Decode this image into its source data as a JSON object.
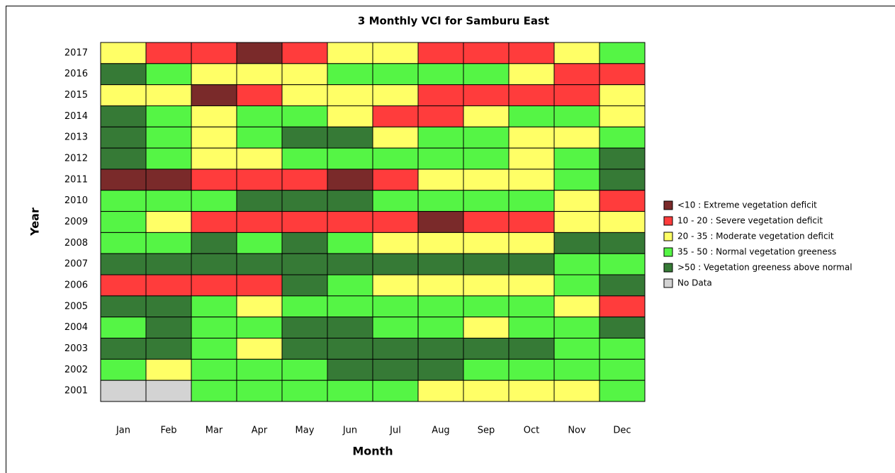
{
  "chart_data": {
    "type": "heatmap",
    "title": "3 Monthly VCI for Samburu East",
    "x_label": "Month",
    "y_label": "Year",
    "categories": [
      "Jan",
      "Feb",
      "Mar",
      "Apr",
      "May",
      "Jun",
      "Jul",
      "Aug",
      "Sep",
      "Oct",
      "Nov",
      "Dec"
    ],
    "years": [
      "2017",
      "2016",
      "2015",
      "2014",
      "2013",
      "2012",
      "2011",
      "2010",
      "2009",
      "2008",
      "2007",
      "2006",
      "2005",
      "2004",
      "2003",
      "2002",
      "2001"
    ],
    "legend": [
      {
        "name": "<10 : Extreme vegetation deficit",
        "color": "#7a2a2a"
      },
      {
        "name": "10 - 20 : Severe vegetation deficit",
        "color": "#ff3c3c"
      },
      {
        "name": "20 - 35 : Moderate vegetation deficit",
        "color": "#ffff66"
      },
      {
        "name": "35 - 50 : Normal vegetation greeness",
        "color": "#55f545"
      },
      {
        "name": ">50 : Vegetation greeness above normal",
        "color": "#367a36"
      },
      {
        "name": "No Data",
        "color": "#d3d3d3"
      }
    ],
    "values": [
      [
        2,
        1,
        1,
        0,
        1,
        2,
        2,
        1,
        1,
        1,
        2,
        3
      ],
      [
        4,
        3,
        2,
        2,
        2,
        3,
        3,
        3,
        3,
        2,
        1,
        1
      ],
      [
        2,
        2,
        0,
        1,
        2,
        2,
        2,
        1,
        1,
        1,
        1,
        2
      ],
      [
        4,
        3,
        2,
        3,
        3,
        2,
        1,
        1,
        2,
        3,
        3,
        2
      ],
      [
        4,
        3,
        2,
        3,
        4,
        4,
        2,
        3,
        3,
        2,
        2,
        3
      ],
      [
        4,
        3,
        2,
        2,
        3,
        3,
        3,
        3,
        3,
        2,
        3,
        4
      ],
      [
        0,
        0,
        1,
        1,
        1,
        0,
        1,
        2,
        2,
        2,
        3,
        4
      ],
      [
        3,
        3,
        3,
        4,
        4,
        4,
        3,
        3,
        3,
        3,
        2,
        1
      ],
      [
        3,
        2,
        1,
        1,
        1,
        1,
        1,
        0,
        1,
        1,
        2,
        2
      ],
      [
        3,
        3,
        4,
        3,
        4,
        3,
        2,
        2,
        2,
        2,
        4,
        4
      ],
      [
        4,
        4,
        4,
        4,
        4,
        4,
        4,
        4,
        4,
        4,
        3,
        3
      ],
      [
        1,
        1,
        1,
        1,
        4,
        3,
        2,
        2,
        2,
        2,
        3,
        4
      ],
      [
        4,
        4,
        3,
        2,
        3,
        3,
        3,
        3,
        3,
        3,
        2,
        1
      ],
      [
        3,
        4,
        3,
        3,
        4,
        4,
        3,
        3,
        2,
        3,
        3,
        4
      ],
      [
        4,
        4,
        3,
        2,
        4,
        4,
        4,
        4,
        4,
        4,
        3,
        3
      ],
      [
        3,
        2,
        3,
        3,
        3,
        4,
        4,
        4,
        3,
        3,
        3,
        3
      ],
      [
        5,
        5,
        3,
        3,
        3,
        3,
        3,
        2,
        2,
        2,
        2,
        3
      ]
    ]
  }
}
